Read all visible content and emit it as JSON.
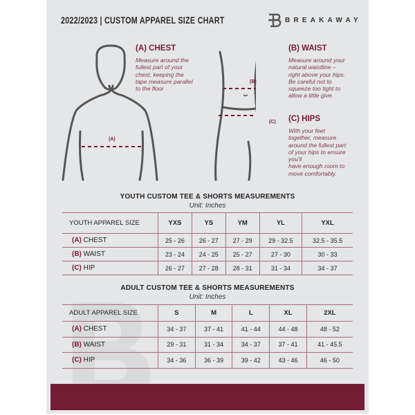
{
  "header": {
    "title": "2022/2023  |  CUSTOM APPAREL SIZE CHART",
    "brand": "BREAKAWAY",
    "logo_letter": "B"
  },
  "colors": {
    "accent": "#741c33",
    "background": "#e5e6e8",
    "line": "#a86a78"
  },
  "measures": {
    "chest": {
      "title": "(A) CHEST",
      "marker": "(A)",
      "lines": [
        "Measure around the",
        "fullest part of your",
        "chest, keeping the",
        "tape measure parallel",
        "to the floor"
      ]
    },
    "waist": {
      "title": "(B) WAIST",
      "marker": "(B)",
      "lines": [
        "Measure around your",
        "natural waistline –",
        "right above your hips.",
        "Be careful not to",
        "squeeze too tight to",
        "allow a little give."
      ]
    },
    "hips": {
      "title": "(C) HIPS",
      "marker": "(C)",
      "lines": [
        "With your feet",
        "together, measure",
        "around the fullest part",
        "of your hips to ensure",
        "you'll",
        "have enough room to",
        "move comfortably."
      ]
    }
  },
  "youth": {
    "title": "YOUTH CUSTOM TEE & SHORTS MEASUREMENTS",
    "unit": "Unit: Inches",
    "header": [
      "YOUTH APPAREL SIZE",
      "YXS",
      "YS",
      "YM",
      "YL",
      "YXL"
    ],
    "rows": [
      {
        "code": "(A)",
        "name": "CHEST",
        "values": [
          "25 - 26",
          "26 - 27",
          "27 - 29",
          "29 - 32.5",
          "32.5 - 35.5"
        ]
      },
      {
        "code": "(B)",
        "name": "WAIST",
        "values": [
          "23 - 24",
          "24 - 25",
          "25 - 27",
          "27 - 30",
          "30 - 33"
        ]
      },
      {
        "code": "(C)",
        "name": "HIP",
        "values": [
          "26 - 27",
          "27 - 28",
          "28 - 31",
          "31 - 34",
          "34 - 37"
        ]
      }
    ]
  },
  "adult": {
    "title": "ADULT CUSTOM TEE & SHORTS MEASUREMENTS",
    "unit": "Unit: Inches",
    "header": [
      "ADULT APPAREL SIZE",
      "S",
      "M",
      "L",
      "XL",
      "2XL"
    ],
    "rows": [
      {
        "code": "(A)",
        "name": "CHEST",
        "values": [
          "34 - 37",
          "37 - 41",
          "41 - 44",
          "44 - 48",
          "48 - 52"
        ]
      },
      {
        "code": "(B)",
        "name": "WAIST",
        "values": [
          "29 - 31",
          "31 - 34",
          "34 - 37",
          "37 - 41",
          "41 - 45.5"
        ]
      },
      {
        "code": "(C)",
        "name": "HIP",
        "values": [
          "34 - 36",
          "36 - 39",
          "39 - 42",
          "43 - 46",
          "46 - 50"
        ]
      }
    ]
  }
}
